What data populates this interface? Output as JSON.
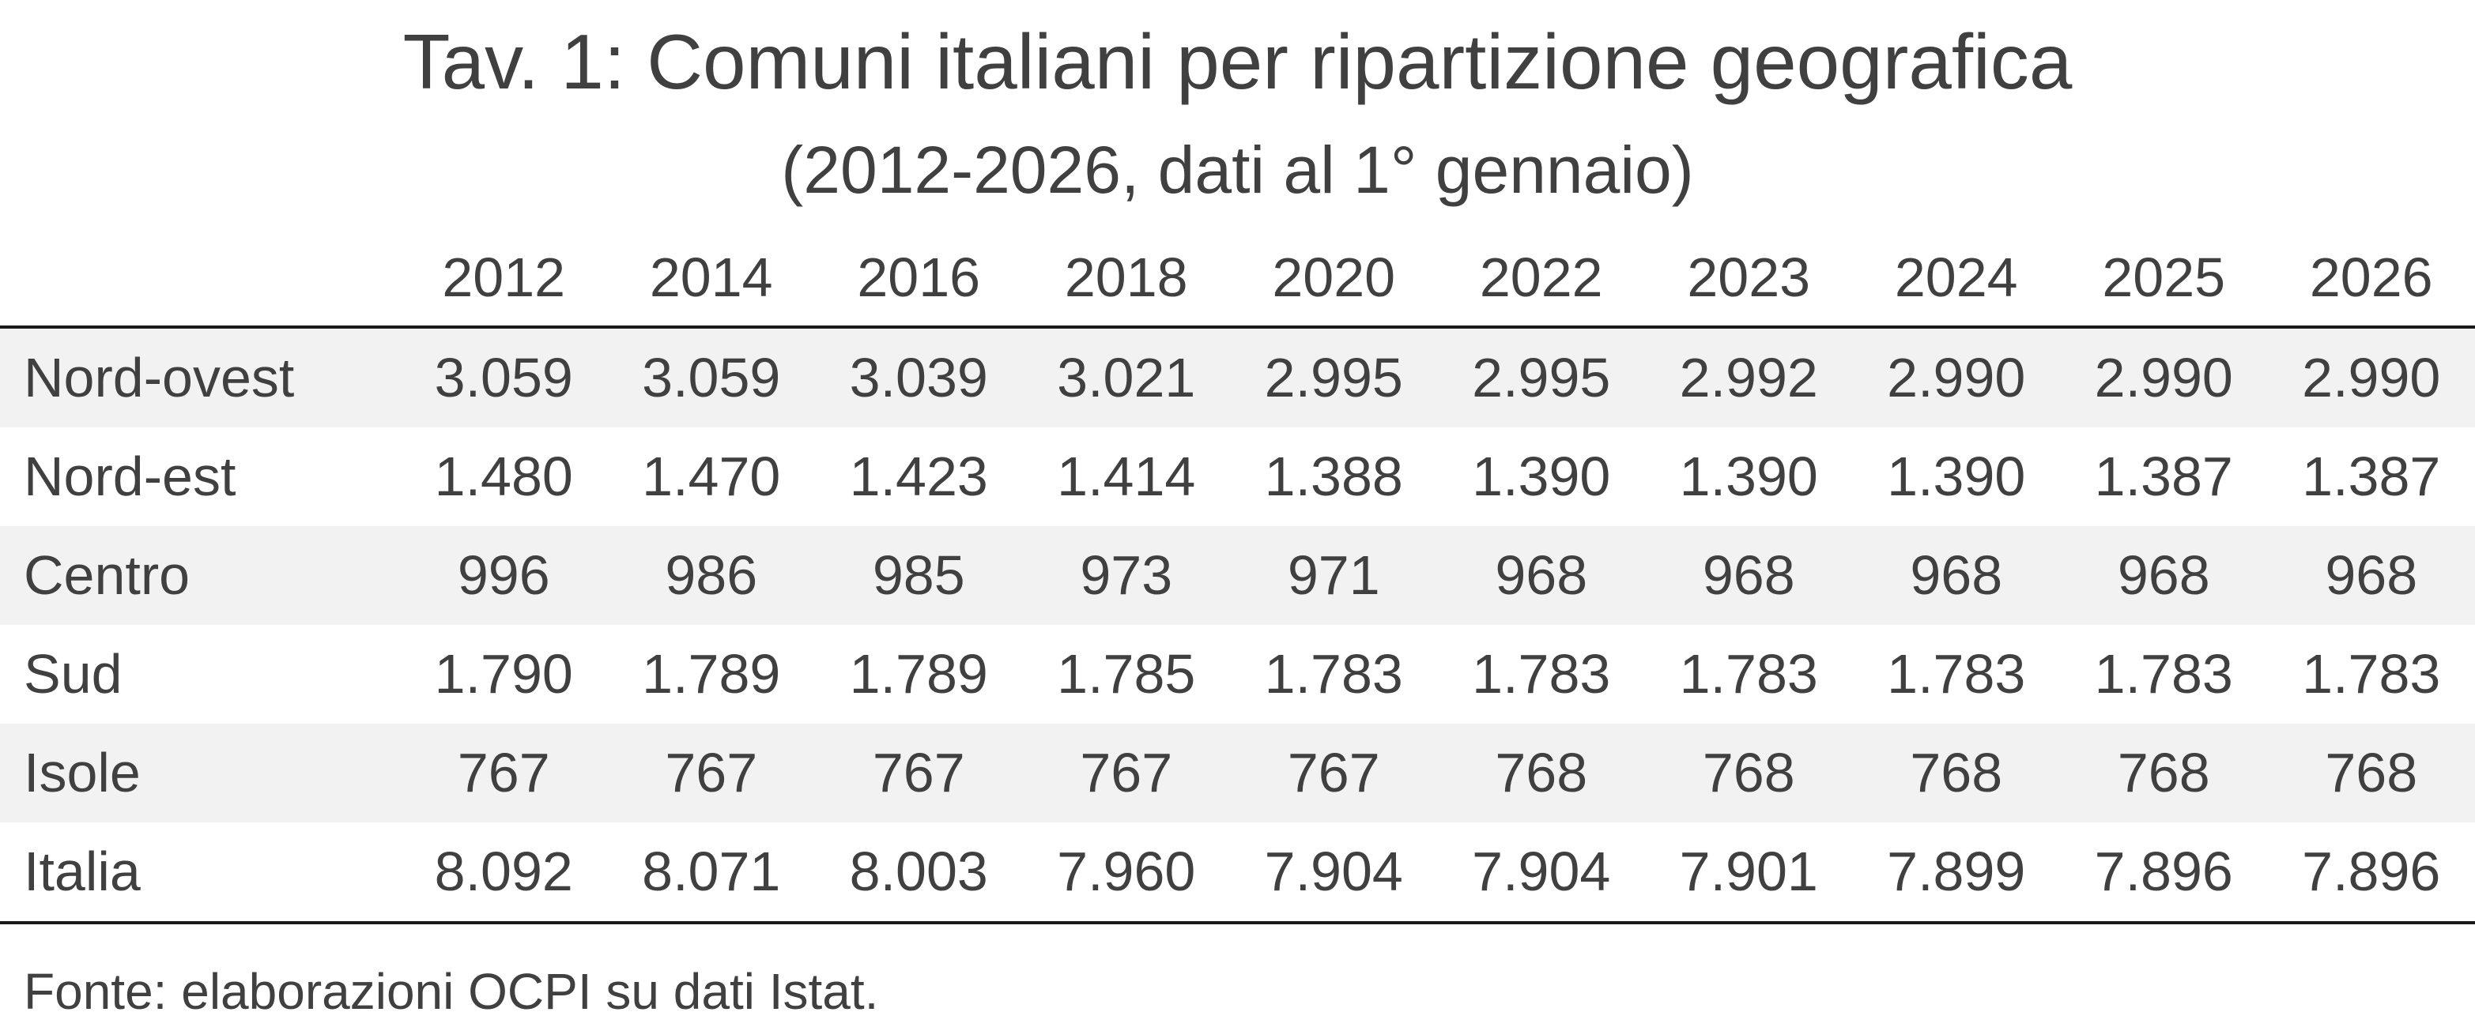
{
  "title": "Tav. 1: Comuni italiani per ripartizione geografica",
  "subtitle": "(2012-2026, dati al 1° gennaio)",
  "table": {
    "corner_label": "",
    "columns": [
      "2012",
      "2014",
      "2016",
      "2018",
      "2020",
      "2022",
      "2023",
      "2024",
      "2025",
      "2026"
    ],
    "rows": [
      {
        "label": "Nord-ovest",
        "values": [
          "3.059",
          "3.059",
          "3.039",
          "3.021",
          "2.995",
          "2.995",
          "2.992",
          "2.990",
          "2.990",
          "2.990"
        ]
      },
      {
        "label": "Nord-est",
        "values": [
          "1.480",
          "1.470",
          "1.423",
          "1.414",
          "1.388",
          "1.390",
          "1.390",
          "1.390",
          "1.387",
          "1.387"
        ]
      },
      {
        "label": "Centro",
        "values": [
          "996",
          "986",
          "985",
          "973",
          "971",
          "968",
          "968",
          "968",
          "968",
          "968"
        ]
      },
      {
        "label": "Sud",
        "values": [
          "1.790",
          "1.789",
          "1.789",
          "1.785",
          "1.783",
          "1.783",
          "1.783",
          "1.783",
          "1.783",
          "1.783"
        ]
      },
      {
        "label": "Isole",
        "values": [
          "767",
          "767",
          "767",
          "767",
          "767",
          "768",
          "768",
          "768",
          "768",
          "768"
        ]
      },
      {
        "label": "Italia",
        "values": [
          "8.092",
          "8.071",
          "8.003",
          "7.960",
          "7.904",
          "7.904",
          "7.901",
          "7.899",
          "7.896",
          "7.896"
        ]
      }
    ]
  },
  "source": "Fonte: elaborazioni OCPI su dati Istat.",
  "colors": {
    "text": "#404040",
    "band": "#f2f2f2",
    "rule": "#1a1a1a"
  }
}
